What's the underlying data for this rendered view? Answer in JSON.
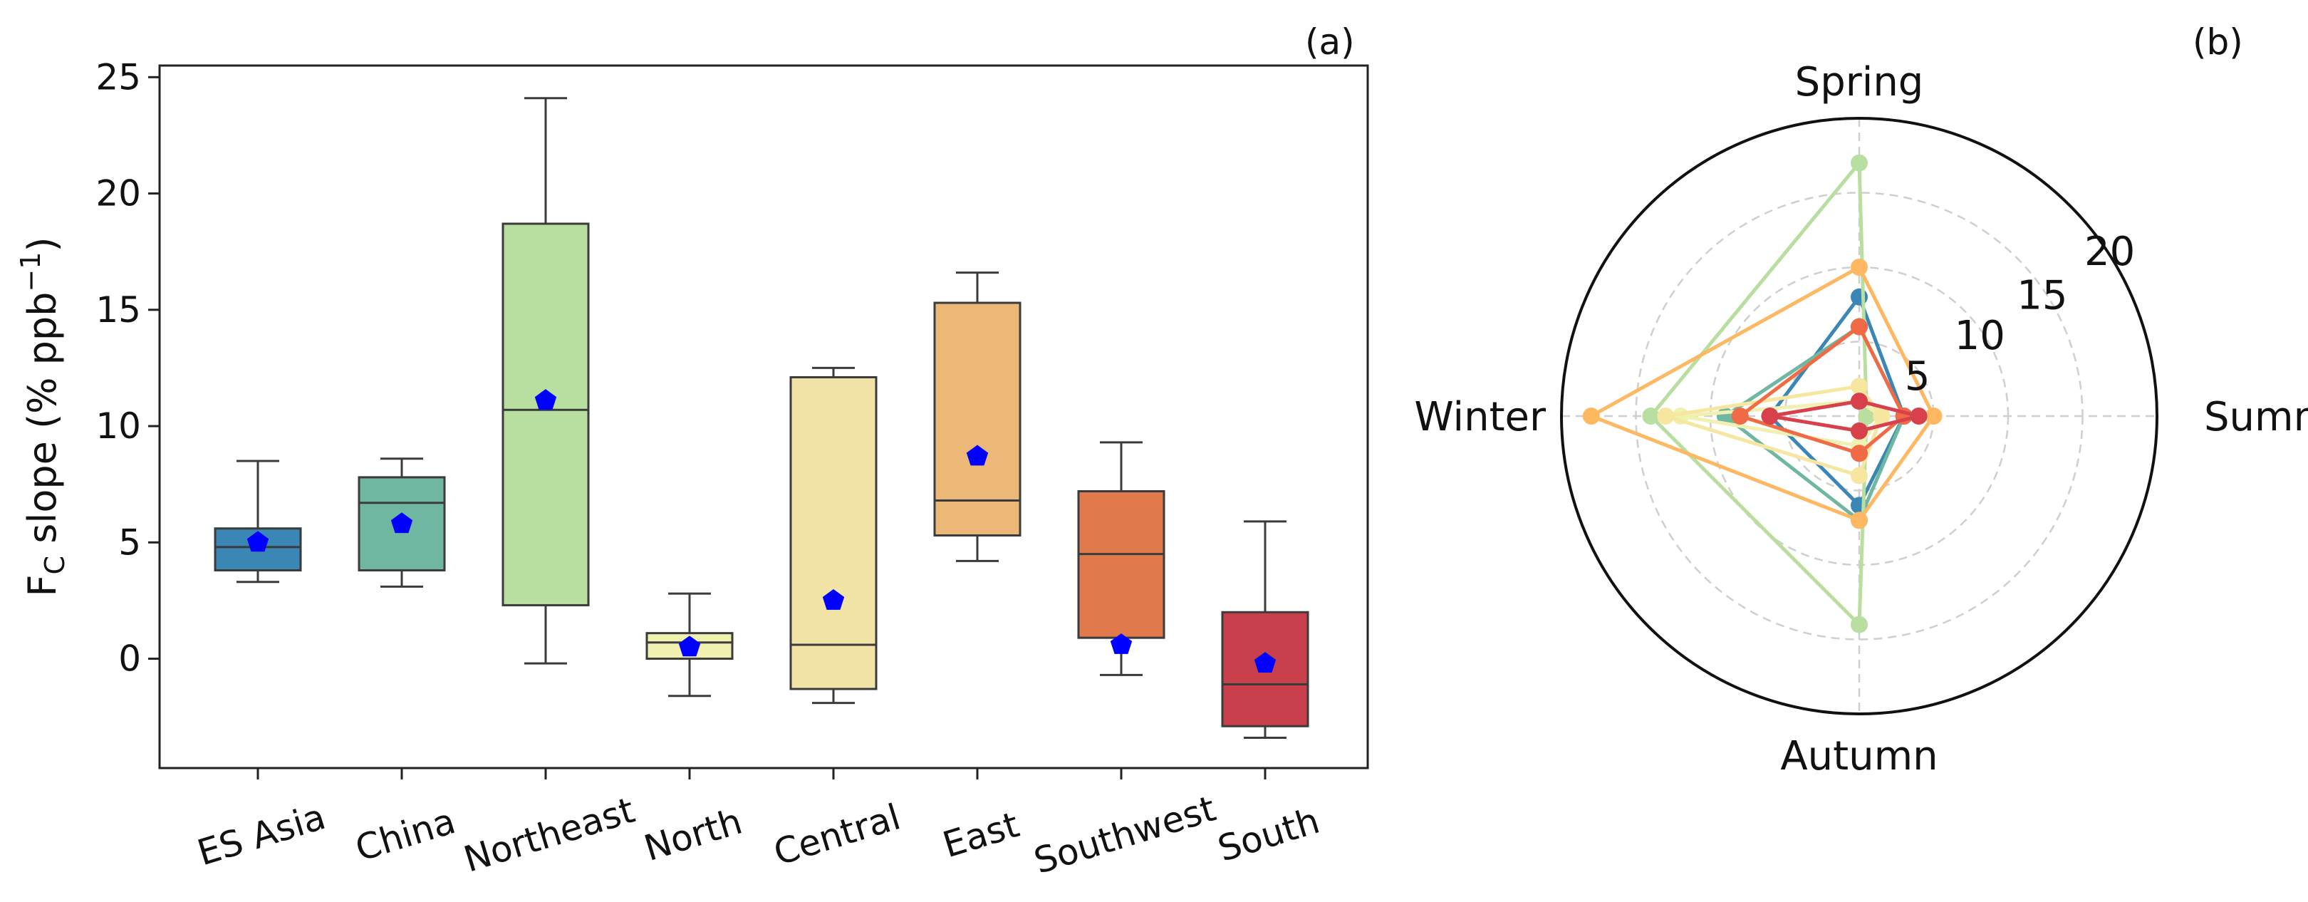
{
  "chart_data": [
    {
      "panel": "(a)",
      "type": "box",
      "ylabel_main": "F",
      "ylabel_sub": "C",
      "ylabel_rest": " slope (% ppb",
      "ylabel_sup": "−1",
      "ylabel_close": ")",
      "ylim": [
        -4.7,
        25.5
      ],
      "yticks": [
        "0",
        "5",
        "10",
        "15",
        "20",
        "25"
      ],
      "categories": [
        "ES Asia",
        "China",
        "Northeast",
        "North",
        "Central",
        "East",
        "Southwest",
        "South"
      ],
      "colors": [
        "#3a86b4",
        "#6fb7a0",
        "#b8dea0",
        "#f0f0b0",
        "#f2e4a6",
        "#ecb878",
        "#e07a4c",
        "#c93f4c"
      ],
      "mean_color": "#0000ff",
      "boxes": [
        {
          "min": 3.3,
          "q1": 3.8,
          "median": 4.8,
          "q3": 5.6,
          "max": 8.5,
          "mean": 5.0
        },
        {
          "min": 3.1,
          "q1": 3.8,
          "median": 6.7,
          "q3": 7.8,
          "max": 8.6,
          "mean": 5.8
        },
        {
          "min": -0.2,
          "q1": 2.3,
          "median": 10.7,
          "q3": 18.7,
          "max": 24.1,
          "mean": 11.1
        },
        {
          "min": -1.6,
          "q1": 0.0,
          "median": 0.7,
          "q3": 1.1,
          "max": 2.8,
          "mean": 0.5
        },
        {
          "min": -1.9,
          "q1": -1.3,
          "median": 0.6,
          "q3": 12.1,
          "max": 12.5,
          "mean": 2.5
        },
        {
          "min": 4.2,
          "q1": 5.3,
          "median": 6.8,
          "q3": 15.3,
          "max": 16.6,
          "mean": 8.7
        },
        {
          "min": -0.7,
          "q1": 0.9,
          "median": 4.5,
          "q3": 7.2,
          "max": 9.3,
          "mean": 0.6
        },
        {
          "min": -3.4,
          "q1": -2.9,
          "median": -1.1,
          "q3": 2.0,
          "max": 5.9,
          "mean": -0.2
        }
      ]
    },
    {
      "panel": "(b)",
      "type": "radar",
      "axes": [
        "Spring",
        "Summer",
        "Autumn",
        "Winter"
      ],
      "rmax": 20,
      "rticks": [
        "5",
        "10",
        "15",
        "20"
      ],
      "series": [
        {
          "name": "ES Asia",
          "color": "#3a86b4",
          "values": [
            8,
            3,
            6,
            6
          ]
        },
        {
          "name": "China",
          "color": "#6fb7a0",
          "values": [
            6,
            3,
            7,
            9
          ]
        },
        {
          "name": "Northeast",
          "color": "#b8dea0",
          "values": [
            17,
            0.5,
            14,
            14
          ]
        },
        {
          "name": "North",
          "color": "#f0f0b0",
          "values": [
            1,
            1.5,
            2,
            12
          ]
        },
        {
          "name": "Central",
          "color": "#f7e6a0",
          "values": [
            2,
            1.5,
            4,
            13
          ]
        },
        {
          "name": "East",
          "color": "#fdb861",
          "values": [
            10,
            5,
            7,
            18
          ]
        },
        {
          "name": "Southwest",
          "color": "#f06b45",
          "values": [
            6,
            3,
            2.5,
            8
          ]
        },
        {
          "name": "South",
          "color": "#d8404c",
          "values": [
            1,
            4,
            1,
            6
          ]
        }
      ]
    }
  ]
}
